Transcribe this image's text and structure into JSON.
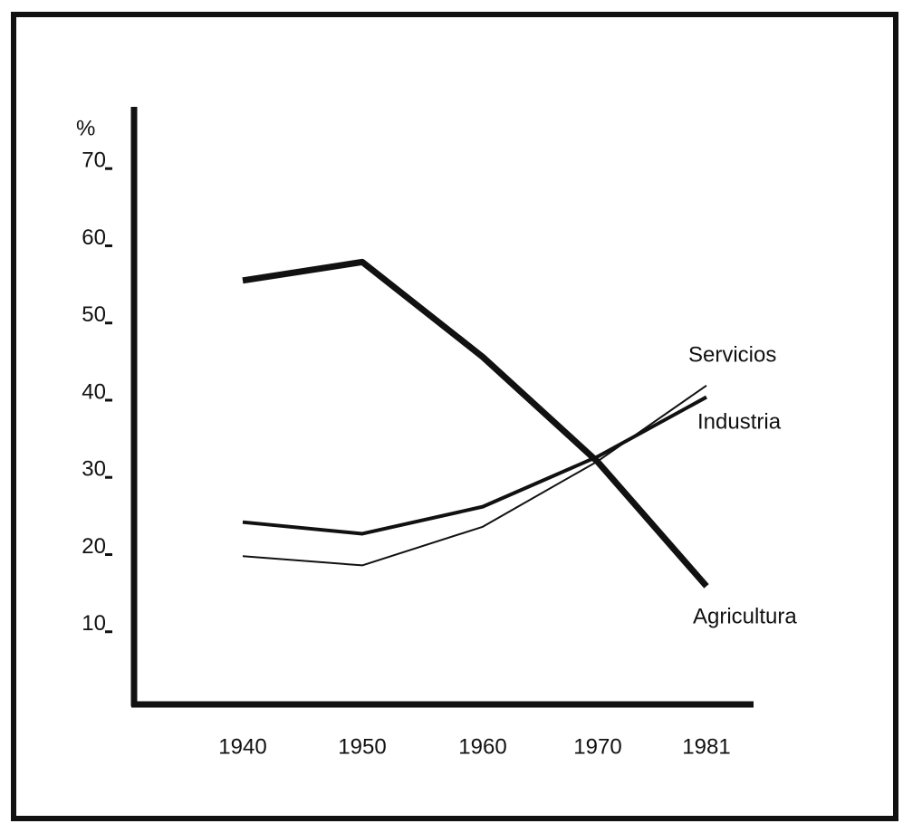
{
  "chart_data": {
    "type": "line",
    "y_label": "%",
    "categories": [
      "1940",
      "1950",
      "1960",
      "1970",
      "1981"
    ],
    "series": [
      {
        "name": "Agricultura",
        "color": "#111111",
        "values": [
          55.5,
          57.9,
          45.6,
          32,
          15.9
        ]
      },
      {
        "name": "Industria",
        "color": "#111111",
        "values": [
          24.2,
          22.7,
          26.2,
          32.7,
          40.4
        ]
      },
      {
        "name": "Servicios",
        "color": "#111111",
        "values": [
          19.8,
          18.6,
          23.6,
          32.1,
          41.9
        ]
      }
    ],
    "ylim": [
      0,
      78
    ],
    "yticks": [
      10,
      20,
      30,
      40,
      50,
      60,
      70
    ],
    "grid": false
  }
}
